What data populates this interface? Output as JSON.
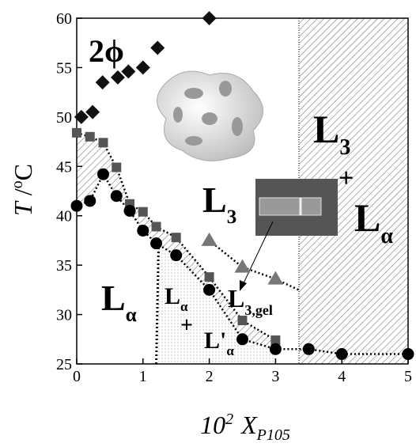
{
  "chart_data": {
    "type": "scatter",
    "xlabel": {
      "coef": "10",
      "sup": "2",
      "var": "X",
      "sub": "P105"
    },
    "ylabel": {
      "var": "T",
      "sep": " /",
      "sup": "o",
      "unit": "C"
    },
    "xlim": [
      0,
      5
    ],
    "ylim": [
      25,
      60
    ],
    "xticks": [
      0,
      1,
      2,
      3,
      4,
      5
    ],
    "yticks": [
      25,
      30,
      35,
      40,
      45,
      50,
      55,
      60
    ],
    "series": [
      {
        "marker": "diamond",
        "color": "#111111",
        "line": false,
        "x": [
          0.07,
          0.24,
          0.39,
          0.62,
          0.78,
          1.0,
          1.22,
          2.0
        ],
        "values": [
          50,
          50.5,
          53.5,
          54,
          54.6,
          55,
          57,
          60
        ]
      },
      {
        "marker": "square",
        "color": "#555555",
        "line": true,
        "x": [
          0,
          0.2,
          0.4,
          0.6,
          0.8,
          1.0,
          1.2,
          1.5,
          2.0,
          2.5,
          3.0
        ],
        "values": [
          48.4,
          48,
          47.4,
          44.9,
          41.2,
          40.4,
          38.9,
          37.8,
          33.8,
          29.4,
          27.4
        ]
      },
      {
        "marker": "circle",
        "color": "#000000",
        "line": true,
        "x": [
          0,
          0.2,
          0.4,
          0.6,
          0.8,
          1.0,
          1.2,
          1.5,
          2.0,
          2.5,
          3.0,
          3.5,
          4.0,
          5.0
        ],
        "values": [
          41,
          41.5,
          44.2,
          42,
          40.5,
          38.5,
          37.2,
          36,
          32.5,
          27.5,
          26.5,
          26.5,
          26,
          26
        ]
      },
      {
        "marker": "triangle",
        "color": "#777777",
        "line": true,
        "x": [
          2.0,
          2.5,
          3.0
        ],
        "values": [
          37.5,
          34.8,
          33.6
        ]
      }
    ],
    "annotations": [
      {
        "text": "2ϕ"
      },
      {
        "text": "L",
        "sub": "3"
      },
      {
        "text": "+"
      },
      {
        "text": "L",
        "sub": "α"
      },
      {
        "text": "L",
        "sub": "3"
      },
      {
        "text": "L",
        "sub": "α"
      },
      {
        "text": "L",
        "sub": "α"
      },
      {
        "text": "+"
      },
      {
        "text": "L'",
        "sub": "α"
      },
      {
        "text": "L",
        "sub": "3,gel"
      }
    ]
  }
}
